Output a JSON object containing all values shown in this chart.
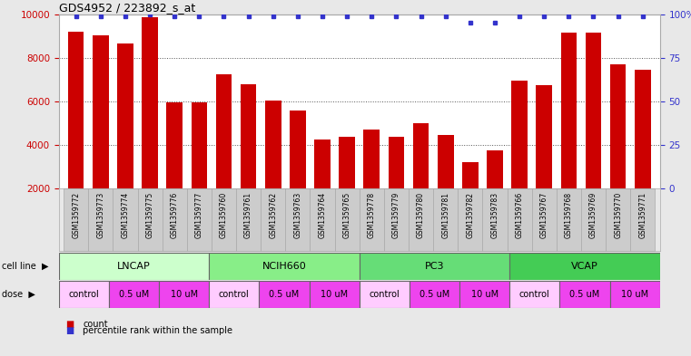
{
  "title": "GDS4952 / 223892_s_at",
  "samples": [
    "GSM1359772",
    "GSM1359773",
    "GSM1359774",
    "GSM1359775",
    "GSM1359776",
    "GSM1359777",
    "GSM1359760",
    "GSM1359761",
    "GSM1359762",
    "GSM1359763",
    "GSM1359764",
    "GSM1359765",
    "GSM1359778",
    "GSM1359779",
    "GSM1359780",
    "GSM1359781",
    "GSM1359782",
    "GSM1359783",
    "GSM1359766",
    "GSM1359767",
    "GSM1359768",
    "GSM1359769",
    "GSM1359770",
    "GSM1359771"
  ],
  "counts": [
    9200,
    9050,
    8650,
    9850,
    5950,
    5950,
    7250,
    6800,
    6050,
    5600,
    4250,
    4400,
    4700,
    4400,
    5000,
    4450,
    3200,
    3750,
    6950,
    6750,
    9150,
    9150,
    7700,
    7450
  ],
  "percentile_ranks": [
    99,
    99,
    99,
    100,
    99,
    99,
    99,
    99,
    99,
    99,
    99,
    99,
    99,
    99,
    99,
    99,
    95,
    95,
    99,
    99,
    99,
    99,
    99,
    99
  ],
  "bar_color": "#cc0000",
  "dot_color": "#3333cc",
  "ylim_left": [
    2000,
    10000
  ],
  "ylim_right": [
    0,
    100
  ],
  "yticks_left": [
    2000,
    4000,
    6000,
    8000,
    10000
  ],
  "yticks_right": [
    0,
    25,
    50,
    75,
    100
  ],
  "ytick_labels_right": [
    "0",
    "25",
    "50",
    "75",
    "100%"
  ],
  "cell_lines": [
    {
      "name": "LNCAP",
      "start": 0,
      "end": 6,
      "color": "#ccffcc"
    },
    {
      "name": "NCIH660",
      "start": 6,
      "end": 12,
      "color": "#88ee88"
    },
    {
      "name": "PC3",
      "start": 12,
      "end": 18,
      "color": "#66dd77"
    },
    {
      "name": "VCAP",
      "start": 18,
      "end": 24,
      "color": "#44cc55"
    }
  ],
  "dose_groups": [
    {
      "label": "control",
      "start": 0,
      "end": 2,
      "color": "#ffccff"
    },
    {
      "label": "0.5 uM",
      "start": 2,
      "end": 4,
      "color": "#ee44ee"
    },
    {
      "label": "10 uM",
      "start": 4,
      "end": 6,
      "color": "#ee44ee"
    },
    {
      "label": "control",
      "start": 6,
      "end": 8,
      "color": "#ffccff"
    },
    {
      "label": "0.5 uM",
      "start": 8,
      "end": 10,
      "color": "#ee44ee"
    },
    {
      "label": "10 uM",
      "start": 10,
      "end": 12,
      "color": "#ee44ee"
    },
    {
      "label": "control",
      "start": 12,
      "end": 14,
      "color": "#ffccff"
    },
    {
      "label": "0.5 uM",
      "start": 14,
      "end": 16,
      "color": "#ee44ee"
    },
    {
      "label": "10 uM",
      "start": 16,
      "end": 18,
      "color": "#ee44ee"
    },
    {
      "label": "control",
      "start": 18,
      "end": 20,
      "color": "#ffccff"
    },
    {
      "label": "0.5 uM",
      "start": 20,
      "end": 22,
      "color": "#ee44ee"
    },
    {
      "label": "10 uM",
      "start": 22,
      "end": 24,
      "color": "#ee44ee"
    }
  ],
  "sample_box_color": "#cccccc",
  "background_color": "#e8e8e8",
  "plot_bg_color": "#ffffff",
  "grid_color": "#555555",
  "legend_count_color": "#cc0000",
  "legend_perc_color": "#3333cc"
}
